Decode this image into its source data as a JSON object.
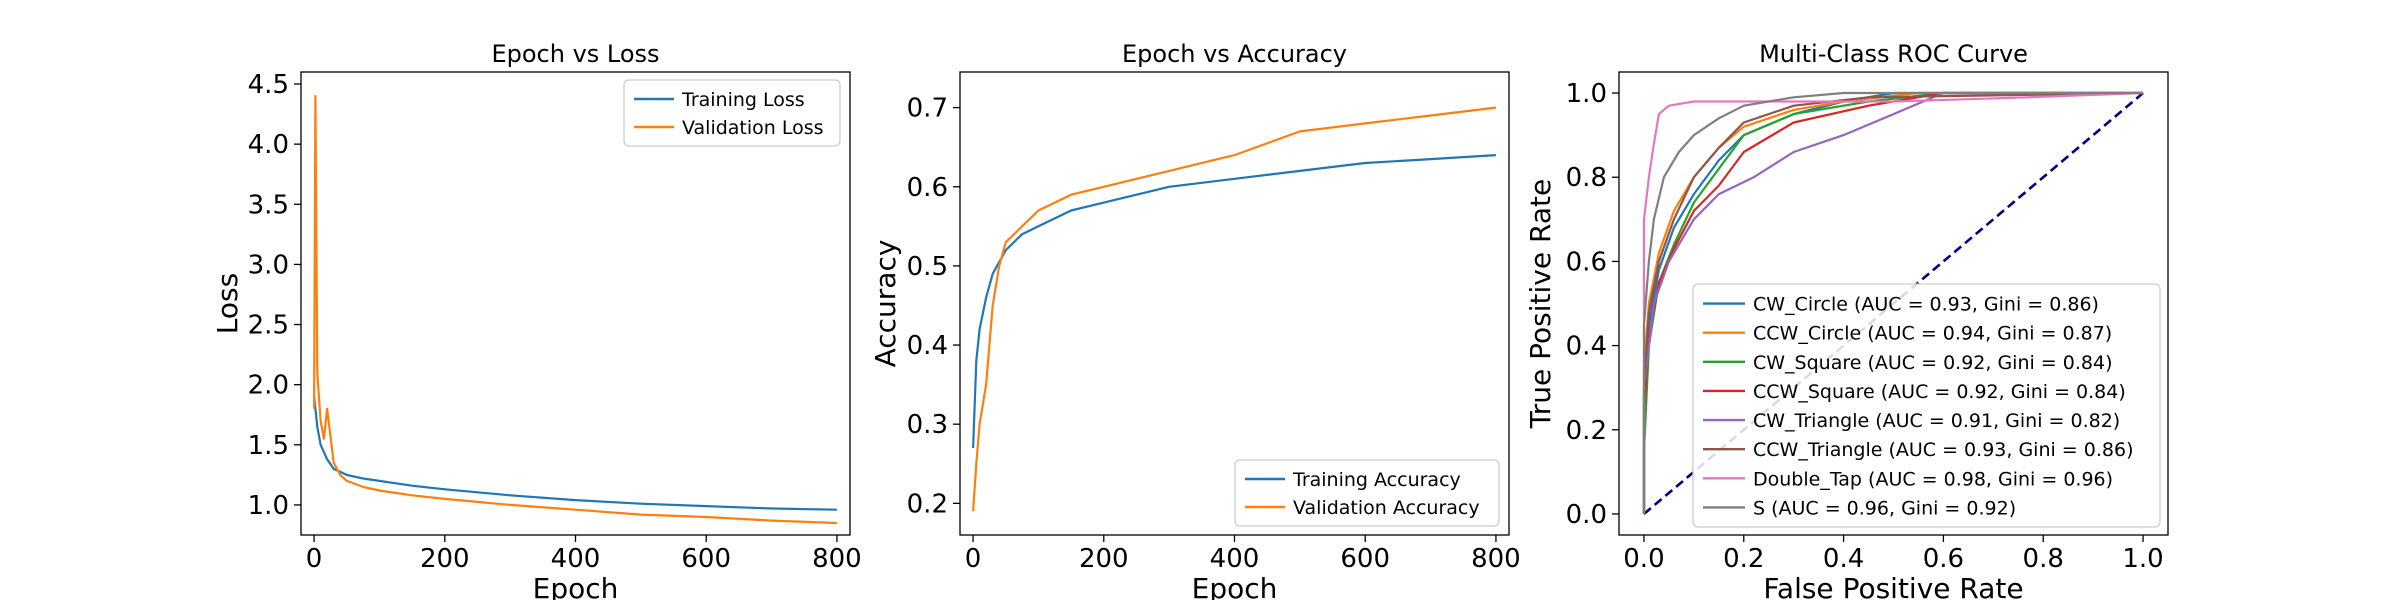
{
  "colors": {
    "c0": "#1f77b4",
    "c1": "#ff7f0e",
    "c2": "#2ca02c",
    "c3": "#d62728",
    "c4": "#9467bd",
    "c5": "#8c564b",
    "c6": "#e377c2",
    "c7": "#7f7f7f",
    "diagonal": "#000080"
  },
  "chart_data": [
    {
      "type": "line",
      "title": "Epoch vs Loss",
      "xlabel": "Epoch",
      "ylabel": "Loss",
      "xlim": [
        -20,
        820
      ],
      "ylim": [
        0.75,
        4.6
      ],
      "xticks": [
        0,
        200,
        400,
        600,
        800
      ],
      "yticks": [
        1.0,
        1.5,
        2.0,
        2.5,
        3.0,
        3.5,
        4.0,
        4.5
      ],
      "ytick_labels": [
        "1.0",
        "1.5",
        "2.0",
        "2.5",
        "3.0",
        "3.5",
        "4.0",
        "4.5"
      ],
      "legend_position": "top-right",
      "series": [
        {
          "name": "Training Loss",
          "color": "c0",
          "x": [
            0,
            5,
            10,
            20,
            30,
            50,
            75,
            100,
            150,
            200,
            300,
            400,
            500,
            600,
            700,
            800
          ],
          "y": [
            1.9,
            1.65,
            1.5,
            1.38,
            1.3,
            1.25,
            1.22,
            1.2,
            1.16,
            1.13,
            1.08,
            1.04,
            1.01,
            0.99,
            0.97,
            0.96
          ]
        },
        {
          "name": "Validation Loss",
          "color": "c1",
          "x": [
            0,
            2,
            5,
            10,
            15,
            20,
            30,
            40,
            50,
            75,
            100,
            150,
            200,
            300,
            400,
            500,
            600,
            700,
            800
          ],
          "y": [
            1.8,
            4.4,
            2.1,
            1.7,
            1.55,
            1.8,
            1.35,
            1.25,
            1.2,
            1.15,
            1.12,
            1.08,
            1.05,
            1.0,
            0.96,
            0.92,
            0.9,
            0.87,
            0.85
          ]
        }
      ]
    },
    {
      "type": "line",
      "title": "Epoch vs Accuracy",
      "xlabel": "Epoch",
      "ylabel": "Accuracy",
      "xlim": [
        -20,
        820
      ],
      "ylim": [
        0.16,
        0.745
      ],
      "xticks": [
        0,
        200,
        400,
        600,
        800
      ],
      "yticks": [
        0.2,
        0.3,
        0.4,
        0.5,
        0.6,
        0.7
      ],
      "ytick_labels": [
        "0.2",
        "0.3",
        "0.4",
        "0.5",
        "0.6",
        "0.7"
      ],
      "legend_position": "bottom-right",
      "series": [
        {
          "name": "Training Accuracy",
          "color": "c0",
          "x": [
            0,
            5,
            10,
            20,
            30,
            50,
            75,
            100,
            150,
            200,
            300,
            400,
            500,
            600,
            700,
            800
          ],
          "y": [
            0.27,
            0.38,
            0.42,
            0.46,
            0.49,
            0.52,
            0.54,
            0.55,
            0.57,
            0.58,
            0.6,
            0.61,
            0.62,
            0.63,
            0.635,
            0.64
          ]
        },
        {
          "name": "Validation Accuracy",
          "color": "c1",
          "x": [
            0,
            5,
            10,
            20,
            30,
            40,
            50,
            75,
            100,
            150,
            200,
            300,
            400,
            500,
            600,
            700,
            800
          ],
          "y": [
            0.19,
            0.25,
            0.3,
            0.35,
            0.45,
            0.5,
            0.53,
            0.55,
            0.57,
            0.59,
            0.6,
            0.62,
            0.64,
            0.67,
            0.68,
            0.69,
            0.7
          ]
        }
      ]
    },
    {
      "type": "line",
      "title": "Multi-Class ROC Curve",
      "xlabel": "False Positive Rate",
      "ylabel": "True Positive Rate",
      "xlim": [
        -0.05,
        1.05
      ],
      "ylim": [
        -0.05,
        1.05
      ],
      "xticks": [
        0.0,
        0.2,
        0.4,
        0.6,
        0.8,
        1.0
      ],
      "yticks": [
        0.0,
        0.2,
        0.4,
        0.6,
        0.8,
        1.0
      ],
      "xtick_labels": [
        "0.0",
        "0.2",
        "0.4",
        "0.6",
        "0.8",
        "1.0"
      ],
      "ytick_labels": [
        "0.0",
        "0.2",
        "0.4",
        "0.6",
        "0.8",
        "1.0"
      ],
      "legend_position": "lower-right",
      "diagonal": true,
      "series": [
        {
          "name": "CW_Circle (AUC = 0.93, Gini = 0.86)",
          "color": "c0",
          "x": [
            0,
            0,
            0.01,
            0.03,
            0.06,
            0.1,
            0.15,
            0.2,
            0.3,
            0.4,
            0.5,
            1.0
          ],
          "y": [
            0,
            0.3,
            0.45,
            0.58,
            0.68,
            0.76,
            0.84,
            0.9,
            0.95,
            0.98,
            1.0,
            1.0
          ]
        },
        {
          "name": "CCW_Circle (AUC = 0.94, Gini = 0.87)",
          "color": "c1",
          "x": [
            0,
            0,
            0.01,
            0.03,
            0.06,
            0.1,
            0.15,
            0.2,
            0.3,
            0.4,
            0.55,
            1.0
          ],
          "y": [
            0,
            0.35,
            0.5,
            0.62,
            0.72,
            0.8,
            0.87,
            0.92,
            0.96,
            0.98,
            1.0,
            1.0
          ]
        },
        {
          "name": "CW_Square (AUC = 0.92, Gini = 0.84)",
          "color": "c2",
          "x": [
            0,
            0,
            0.01,
            0.03,
            0.06,
            0.1,
            0.15,
            0.2,
            0.3,
            0.45,
            0.6,
            1.0
          ],
          "y": [
            0,
            0.15,
            0.4,
            0.55,
            0.64,
            0.74,
            0.82,
            0.9,
            0.95,
            0.98,
            1.0,
            1.0
          ]
        },
        {
          "name": "CCW_Square (AUC = 0.92, Gini = 0.84)",
          "color": "c3",
          "x": [
            0,
            0,
            0.01,
            0.03,
            0.06,
            0.1,
            0.15,
            0.2,
            0.3,
            0.45,
            0.6,
            1.0
          ],
          "y": [
            0,
            0.25,
            0.42,
            0.55,
            0.63,
            0.72,
            0.78,
            0.86,
            0.93,
            0.97,
            1.0,
            1.0
          ]
        },
        {
          "name": "CW_Triangle (AUC = 0.91, Gini = 0.82)",
          "color": "c4",
          "x": [
            0,
            0,
            0.02,
            0.05,
            0.1,
            0.15,
            0.22,
            0.3,
            0.4,
            0.5,
            0.6,
            1.0
          ],
          "y": [
            0,
            0.3,
            0.5,
            0.6,
            0.7,
            0.76,
            0.8,
            0.86,
            0.9,
            0.95,
            1.0,
            1.0
          ]
        },
        {
          "name": "CCW_Triangle (AUC = 0.93, Gini = 0.86)",
          "color": "c5",
          "x": [
            0,
            0,
            0.01,
            0.03,
            0.06,
            0.1,
            0.15,
            0.2,
            0.3,
            0.45,
            1.0
          ],
          "y": [
            0,
            0.3,
            0.48,
            0.6,
            0.7,
            0.8,
            0.87,
            0.93,
            0.97,
            0.99,
            1.0
          ]
        },
        {
          "name": "Double_Tap (AUC = 0.98, Gini = 0.96)",
          "color": "c6",
          "x": [
            0,
            0,
            0.01,
            0.02,
            0.03,
            0.05,
            0.1,
            0.3,
            0.5,
            0.77,
            1.0
          ],
          "y": [
            0,
            0.7,
            0.8,
            0.88,
            0.95,
            0.97,
            0.98,
            0.98,
            0.98,
            0.99,
            1.0
          ]
        },
        {
          "name": "S (AUC = 0.96, Gini = 0.92)",
          "color": "c7",
          "x": [
            0,
            0,
            0.01,
            0.02,
            0.04,
            0.07,
            0.1,
            0.15,
            0.2,
            0.3,
            0.4,
            1.0
          ],
          "y": [
            0,
            0.45,
            0.6,
            0.7,
            0.8,
            0.86,
            0.9,
            0.94,
            0.97,
            0.99,
            1.0,
            1.0
          ]
        }
      ]
    }
  ]
}
